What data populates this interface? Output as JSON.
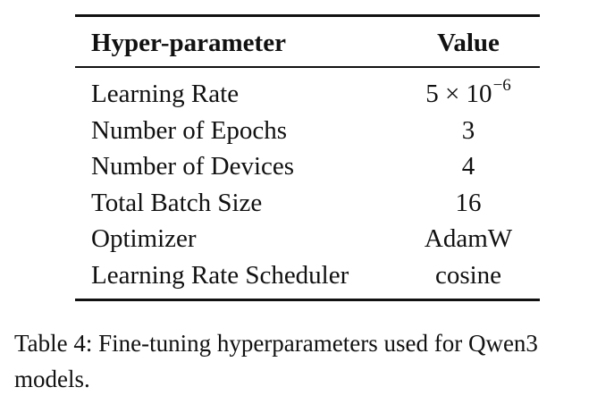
{
  "table": {
    "headers": {
      "param": "Hyper-parameter",
      "value": "Value"
    },
    "rows": [
      {
        "param": "Learning Rate",
        "value_mantissa": "5 × 10",
        "value_exponent": "−6"
      },
      {
        "param": "Number of Epochs",
        "value": "3"
      },
      {
        "param": "Number of Devices",
        "value": "4"
      },
      {
        "param": "Total Batch Size",
        "value": "16"
      },
      {
        "param": "Optimizer",
        "value": "AdamW"
      },
      {
        "param": "Learning Rate Scheduler",
        "value": "cosine"
      }
    ]
  },
  "caption": "Table 4: Fine-tuning hyperparameters used for Qwen3 models."
}
